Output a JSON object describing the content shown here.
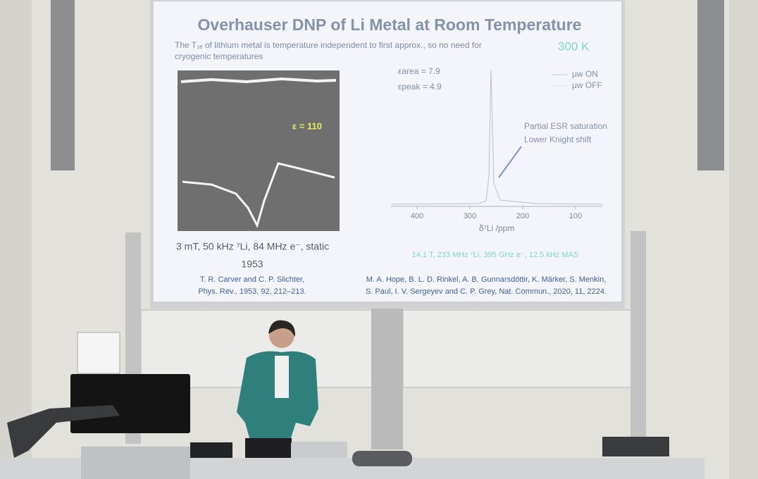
{
  "slide": {
    "title": "Overhauser DNP of Li Metal at Room Temperature",
    "intro": [
      "The T₁ₑ of lithium metal is temperature independent to first approx., so no need for",
      "cryogenic temperatures"
    ],
    "temperature": "300 K",
    "left_figure": {
      "epsilon": "ε = 110",
      "conditions": "3 mT,   50 kHz ⁷Li,   84 MHz e⁻, static",
      "year": "1953",
      "reference": [
        "T. R. Carver and C. P. Slichter,",
        "Phys. Rev., 1953, 92, 212–213."
      ]
    },
    "spectrum": {
      "enhancements": [
        "εarea = 7.9",
        "εpeak = 4.9"
      ],
      "legend": [
        "μw ON",
        "μw OFF"
      ],
      "annotation": [
        "Partial ESR saturation",
        "Lower Knight shift"
      ],
      "xticks": [
        400,
        300,
        200,
        100
      ],
      "xlabel": "δ⁷Li /ppm",
      "conditions": "14.1 T,  233 MHz ⁷Li,  395 GHz e⁻, 12.5 kHz MAS"
    },
    "reference": [
      "M. A. Hope, B. L. D. Rinkel, A. B. Gunnarsdóttir, K. Märker, S. Menkin,",
      "S. Paul, I. V. Sergeyev and C. P. Grey, Nat. Commun., 2020, 11, 2224."
    ]
  }
}
